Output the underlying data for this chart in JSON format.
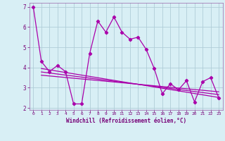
{
  "xlabel": "Windchill (Refroidissement éolien,°C)",
  "ylabel": "",
  "bg_color": "#d8eff5",
  "grid_color": "#b0cdd8",
  "line_color": "#aa00aa",
  "x_main": [
    0,
    1,
    2,
    3,
    4,
    5,
    6,
    7,
    8,
    9,
    10,
    11,
    12,
    13,
    14,
    15,
    16,
    17,
    18,
    19,
    20,
    21,
    22,
    23
  ],
  "y_main": [
    7.0,
    4.3,
    3.8,
    4.1,
    3.8,
    2.2,
    2.2,
    4.7,
    6.3,
    5.75,
    6.5,
    5.75,
    5.4,
    5.5,
    4.9,
    3.95,
    2.7,
    3.2,
    2.9,
    3.35,
    2.3,
    3.3,
    3.5,
    2.5
  ],
  "ylim": [
    1.9,
    7.2
  ],
  "xlim": [
    -0.5,
    23.5
  ],
  "yticks": [
    2,
    3,
    4,
    5,
    6,
    7
  ],
  "xticks": [
    0,
    1,
    2,
    3,
    4,
    5,
    6,
    7,
    8,
    9,
    10,
    11,
    12,
    13,
    14,
    15,
    16,
    17,
    18,
    19,
    20,
    21,
    22,
    23
  ],
  "regression_lines": [
    {
      "x0": 1,
      "y0": 3.95,
      "x1": 23,
      "y1": 2.52
    },
    {
      "x0": 1,
      "y0": 3.78,
      "x1": 23,
      "y1": 2.66
    },
    {
      "x0": 1,
      "y0": 3.62,
      "x1": 23,
      "y1": 2.8
    }
  ]
}
